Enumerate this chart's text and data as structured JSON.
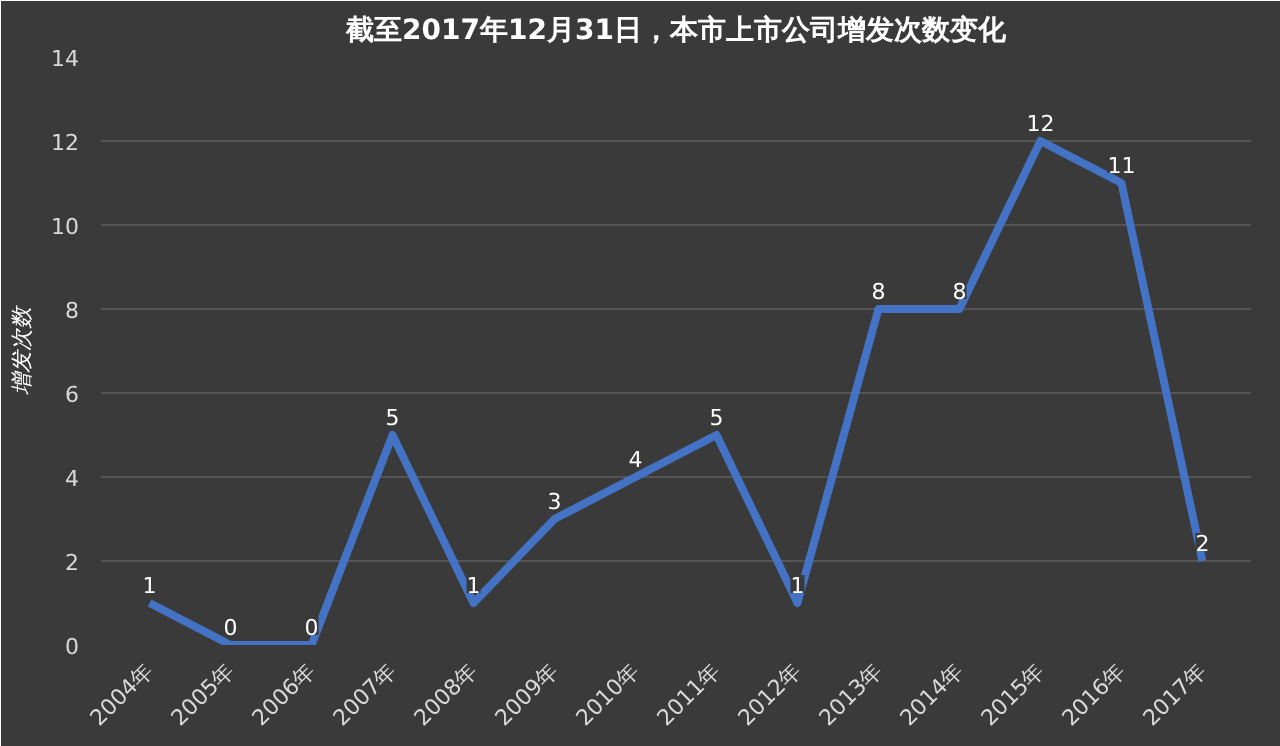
{
  "chart_data": {
    "type": "line",
    "title": "截至2017年12月31日，本市上市公司增发次数变化",
    "ylabel": "增发次数",
    "categories": [
      "2004年",
      "2005年",
      "2006年",
      "2007年",
      "2008年",
      "2009年",
      "2010年",
      "2011年",
      "2012年",
      "2013年",
      "2014年",
      "2015年",
      "2016年",
      "2017年"
    ],
    "series": [
      {
        "color": "#4472c4",
        "values": [
          1,
          0,
          0,
          5,
          1,
          3,
          4,
          5,
          1,
          8,
          8,
          12,
          11,
          2
        ]
      }
    ],
    "ylim": [
      0,
      14
    ],
    "yticks": [
      0,
      2,
      4,
      6,
      8,
      10,
      12,
      14
    ],
    "grid": "y",
    "data_labels": true,
    "marker": "none",
    "line_style": "solid"
  }
}
